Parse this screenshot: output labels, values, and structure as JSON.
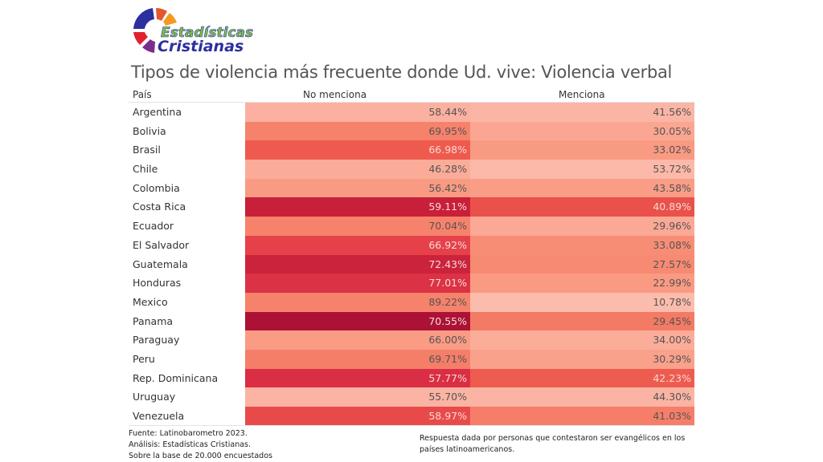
{
  "logo": {
    "line1": "Estadísticas",
    "line2": "Cristianas"
  },
  "chart_data": {
    "type": "table",
    "title": "Tipos de violencia más frecuente donde Ud. vive: Violencia verbal",
    "columns": [
      "País",
      "No menciona",
      "Menciona"
    ],
    "rows": [
      {
        "country": "Argentina",
        "no_menciona": "58.44%",
        "menciona": "41.56%",
        "c1": "#fbb0a0",
        "c2": "#fbb5a5"
      },
      {
        "country": "Bolivia",
        "no_menciona": "69.95%",
        "menciona": "30.05%",
        "c1": "#f7826b",
        "c2": "#fba692"
      },
      {
        "country": "Brasil",
        "no_menciona": "66.98%",
        "menciona": "33.02%",
        "c1": "#ef5a4e",
        "c2": "#f99a82"
      },
      {
        "country": "Chile",
        "no_menciona": "46.28%",
        "menciona": "53.72%",
        "c1": "#fbac99",
        "c2": "#fcb8a8"
      },
      {
        "country": "Colombia",
        "no_menciona": "56.42%",
        "menciona": "43.58%",
        "c1": "#f99a82",
        "c2": "#fa9d86"
      },
      {
        "country": "Costa Rica",
        "no_menciona": "59.11%",
        "menciona": "40.89%",
        "c1": "#c81f3b",
        "c2": "#e9514a"
      },
      {
        "country": "Ecuador",
        "no_menciona": "70.04%",
        "menciona": "29.96%",
        "c1": "#f7826b",
        "c2": "#fba896"
      },
      {
        "country": "El Salvador",
        "no_menciona": "66.92%",
        "menciona": "33.08%",
        "c1": "#e6414a",
        "c2": "#f88d75"
      },
      {
        "country": "Guatemala",
        "no_menciona": "72.43%",
        "menciona": "27.57%",
        "c1": "#cc233d",
        "c2": "#f78a72"
      },
      {
        "country": "Honduras",
        "no_menciona": "77.01%",
        "menciona": "22.99%",
        "c1": "#dc3245",
        "c2": "#fa9a82"
      },
      {
        "country": "Mexico",
        "no_menciona": "89.22%",
        "menciona": "10.78%",
        "c1": "#f7826b",
        "c2": "#fcbcad"
      },
      {
        "country": "Panama",
        "no_menciona": "70.55%",
        "menciona": "29.45%",
        "c1": "#ab1236",
        "c2": "#f37a64"
      },
      {
        "country": "Paraguay",
        "no_menciona": "66.00%",
        "menciona": "34.00%",
        "c1": "#fa9b84",
        "c2": "#fbad9a"
      },
      {
        "country": "Peru",
        "no_menciona": "69.71%",
        "menciona": "30.29%",
        "c1": "#f57e68",
        "c2": "#faa18b"
      },
      {
        "country": "Rep. Dominicana",
        "no_menciona": "57.77%",
        "menciona": "42.23%",
        "c1": "#d92e43",
        "c2": "#ee5b4f"
      },
      {
        "country": "Uruguay",
        "no_menciona": "55.70%",
        "menciona": "44.30%",
        "c1": "#fbb3a3",
        "c2": "#fbb3a3"
      },
      {
        "country": "Venezuela",
        "no_menciona": "58.97%",
        "menciona": "41.03%",
        "c1": "#e84a4a",
        "c2": "#f67e69"
      }
    ]
  },
  "footer": {
    "source": "Fuente: Latinobarometro 2023.",
    "analysis": "Análisis: Estadísticas Cristianas.",
    "base": "Sobre la base de 20.000 encuestados",
    "note_line1": "Respuesta dada por personas que contestaron ser evangélicos en los",
    "note_line2": "países latinoamericanos."
  },
  "colors": {
    "dark_text_threshold": "light",
    "light_text": "#f6d6d3",
    "dark_text": "#555555"
  }
}
